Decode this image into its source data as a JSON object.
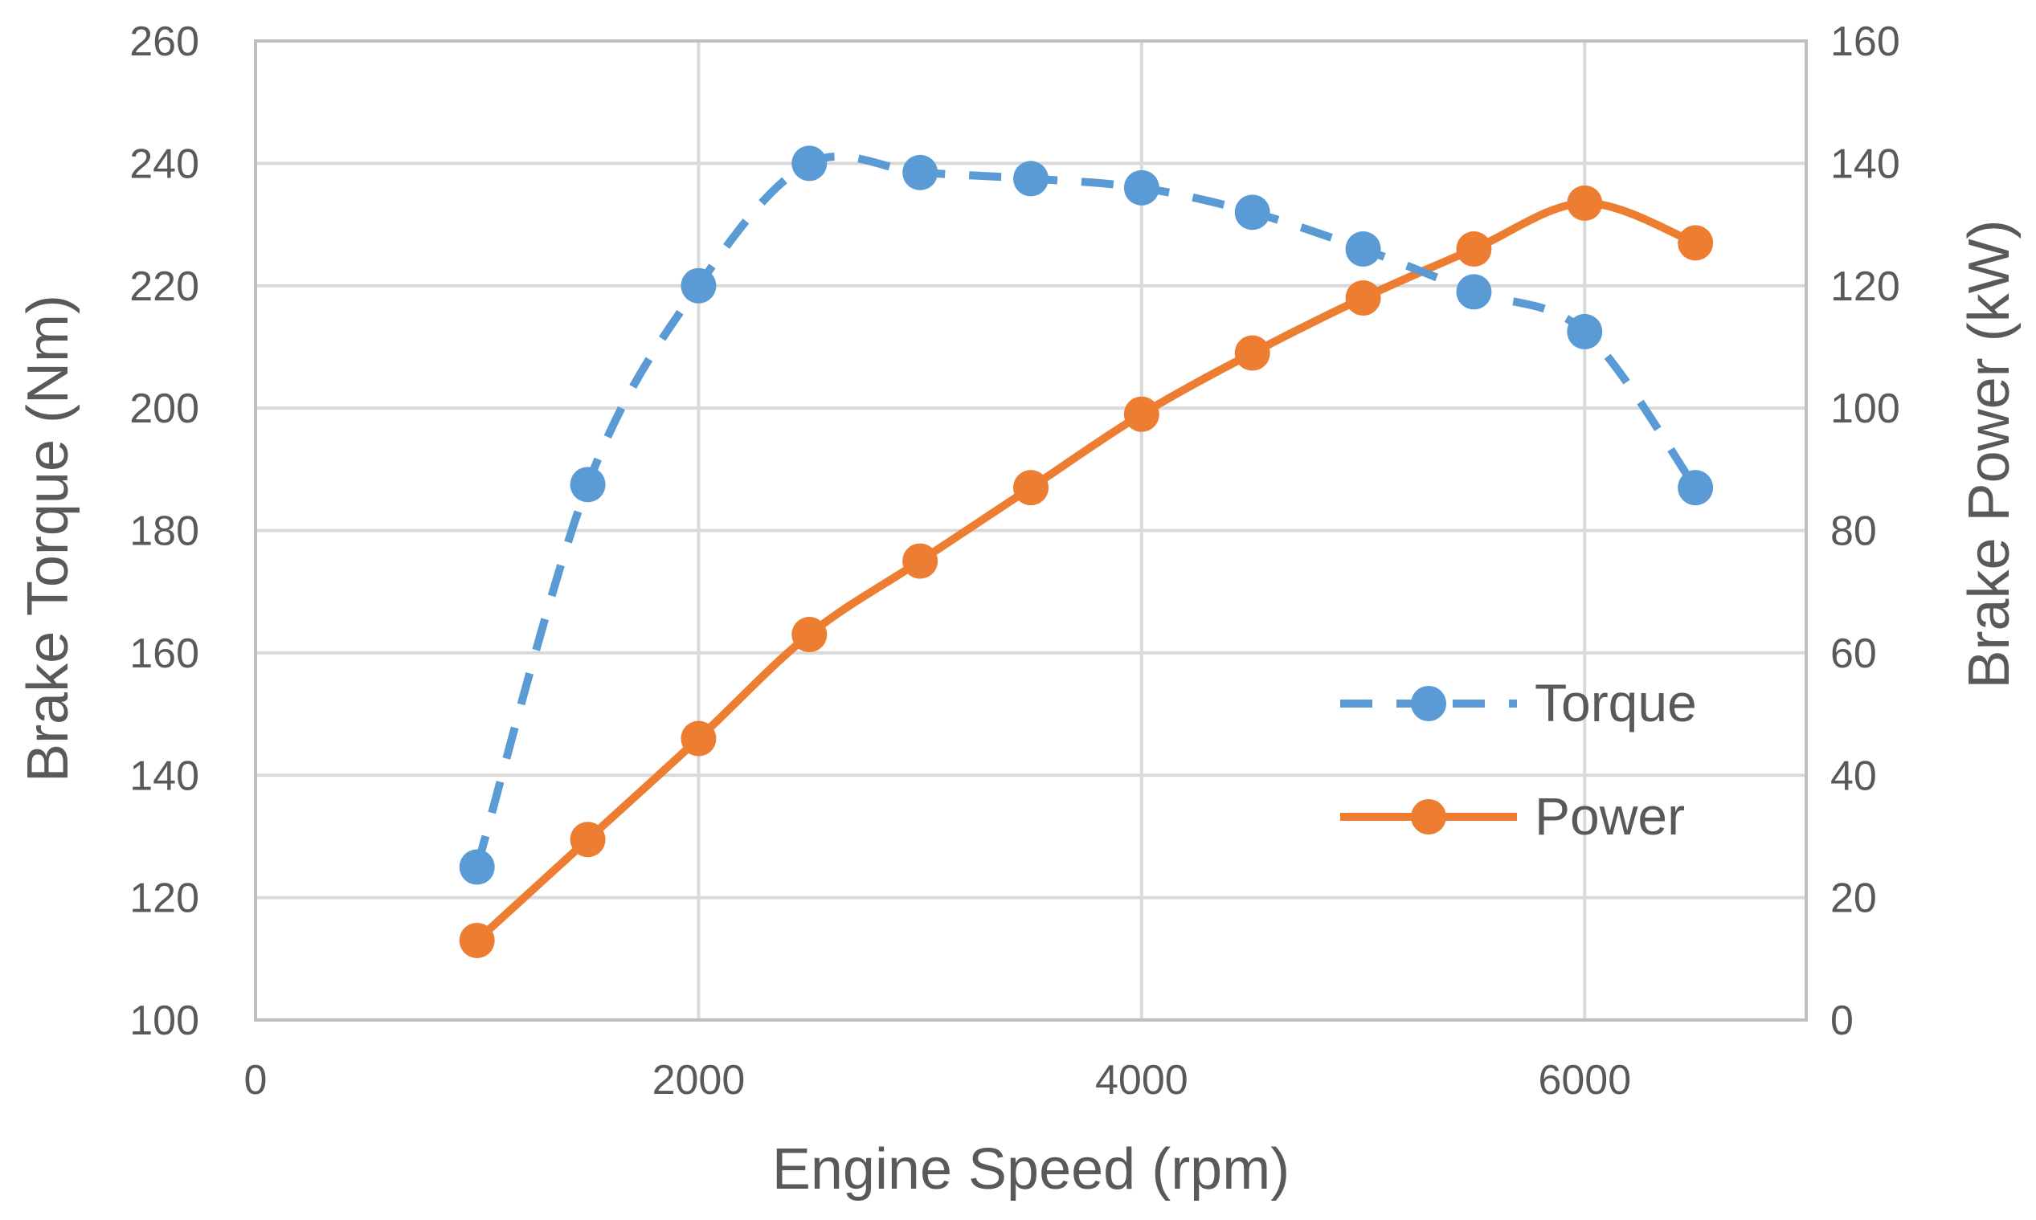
{
  "chart_data": {
    "type": "line",
    "title": "",
    "xlabel": "Engine Speed (rpm)",
    "ylabel": "Brake Torque (Nm)",
    "y2label": "Brake Power (kW)",
    "xlim": [
      0,
      7000
    ],
    "ylim": [
      100,
      260
    ],
    "y2lim": [
      0,
      160
    ],
    "xticks": [
      0,
      2000,
      4000,
      6000
    ],
    "yticks": [
      100,
      120,
      140,
      160,
      180,
      200,
      220,
      240,
      260
    ],
    "y2ticks": [
      0,
      20,
      40,
      60,
      80,
      100,
      120,
      140,
      160
    ],
    "grid": true,
    "legend_position": "right",
    "series": [
      {
        "name": "Torque",
        "axis": "left",
        "style": "dashed",
        "color": "#5b9bd5",
        "x": [
          1000,
          1500,
          2000,
          2500,
          3000,
          3500,
          4000,
          4500,
          5000,
          5500,
          6000,
          6500
        ],
        "values": [
          125,
          187.5,
          220,
          240,
          238.5,
          237.5,
          236,
          232,
          226,
          219,
          212.5,
          187
        ]
      },
      {
        "name": "Power",
        "axis": "right",
        "style": "solid",
        "color": "#ed7d31",
        "x": [
          1000,
          1500,
          2000,
          2500,
          3000,
          3500,
          4000,
          4500,
          5000,
          5500,
          6000,
          6500
        ],
        "values": [
          13,
          29.5,
          46,
          63,
          75,
          87,
          99,
          109,
          118,
          126,
          133.5,
          127
        ]
      }
    ]
  }
}
